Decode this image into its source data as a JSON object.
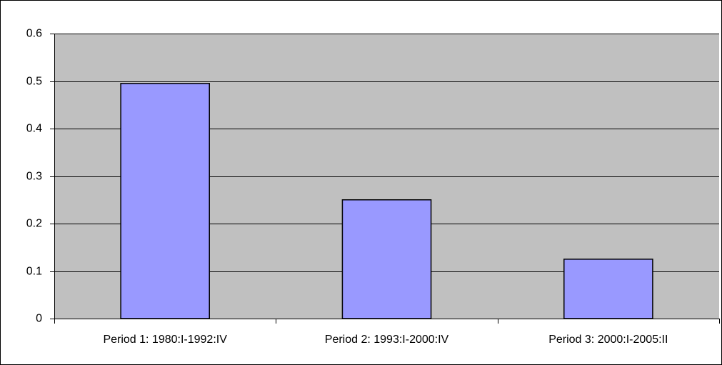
{
  "chart_data": {
    "type": "bar",
    "categories": [
      "Period 1: 1980:I-1992:IV",
      "Period 2: 1993:I-2000:IV",
      "Period 3: 2000:I-2005:II"
    ],
    "values": [
      0.495,
      0.25,
      0.125
    ],
    "color": "#9999ff",
    "ylim": [
      0,
      0.6
    ],
    "yticks": [
      0,
      0.1,
      0.2,
      0.3,
      0.4,
      0.5,
      0.6
    ],
    "grid": true
  }
}
